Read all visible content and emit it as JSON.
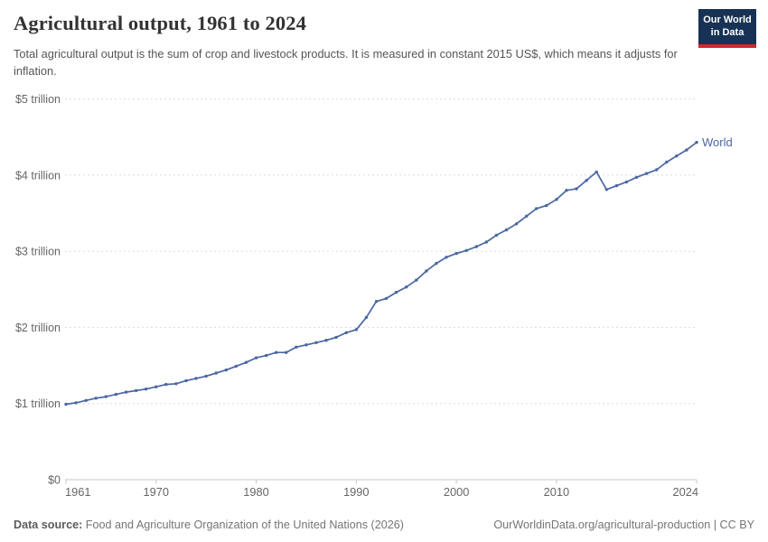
{
  "header": {
    "title": "Agricultural output, 1961 to 2024",
    "subtitle": "Total agricultural output is the sum of crop and livestock products. It is measured in constant 2015 US$, which means it adjusts for inflation.",
    "logo": {
      "line1": "Our World",
      "line2": "in Data"
    }
  },
  "chart_data": {
    "type": "line",
    "title": "Agricultural output, 1961 to 2024",
    "unit": "constant 2015 US$ (trillions)",
    "grid": "horizontal dashed gridlines",
    "legend_position": "end-of-line label",
    "xlim": [
      1961,
      2024
    ],
    "ylim": [
      0,
      5
    ],
    "x_ticks": [
      1961,
      1970,
      1980,
      1990,
      2000,
      2010,
      2024
    ],
    "y_ticks": [
      {
        "value": 0,
        "label": "$0"
      },
      {
        "value": 1,
        "label": "$1 trillion"
      },
      {
        "value": 2,
        "label": "$2 trillion"
      },
      {
        "value": 3,
        "label": "$3 trillion"
      },
      {
        "value": 4,
        "label": "$4 trillion"
      },
      {
        "value": 5,
        "label": "$5 trillion"
      }
    ],
    "line_color": "#4a67a2",
    "series": [
      {
        "name": "World",
        "x": [
          1961,
          1962,
          1963,
          1964,
          1965,
          1966,
          1967,
          1968,
          1969,
          1970,
          1971,
          1972,
          1973,
          1974,
          1975,
          1976,
          1977,
          1978,
          1979,
          1980,
          1981,
          1982,
          1983,
          1984,
          1985,
          1986,
          1987,
          1988,
          1989,
          1990,
          1991,
          1992,
          1993,
          1994,
          1995,
          1996,
          1997,
          1998,
          1999,
          2000,
          2001,
          2002,
          2003,
          2004,
          2005,
          2006,
          2007,
          2008,
          2009,
          2010,
          2011,
          2012,
          2013,
          2014,
          2015,
          2016,
          2017,
          2018,
          2019,
          2020,
          2021,
          2022,
          2023,
          2024
        ],
        "values": [
          0.99,
          1.01,
          1.04,
          1.07,
          1.09,
          1.12,
          1.15,
          1.17,
          1.19,
          1.22,
          1.25,
          1.26,
          1.3,
          1.33,
          1.36,
          1.4,
          1.44,
          1.49,
          1.54,
          1.6,
          1.63,
          1.67,
          1.67,
          1.74,
          1.77,
          1.8,
          1.83,
          1.87,
          1.93,
          1.97,
          2.13,
          2.34,
          2.38,
          2.46,
          2.53,
          2.62,
          2.74,
          2.84,
          2.92,
          2.97,
          3.01,
          3.06,
          3.12,
          3.21,
          3.28,
          3.36,
          3.46,
          3.56,
          3.6,
          3.68,
          3.8,
          3.82,
          3.93,
          4.04,
          3.81,
          3.86,
          3.91,
          3.97,
          4.02,
          4.07,
          4.17,
          4.25,
          4.33,
          4.43
        ]
      }
    ]
  },
  "footer": {
    "datasource_label": "Data source:",
    "datasource_text": " Food and Agriculture Organization of the United Nations (2026)",
    "link": "OurWorldinData.org/agricultural-production",
    "separator": " | ",
    "license": "CC BY"
  }
}
